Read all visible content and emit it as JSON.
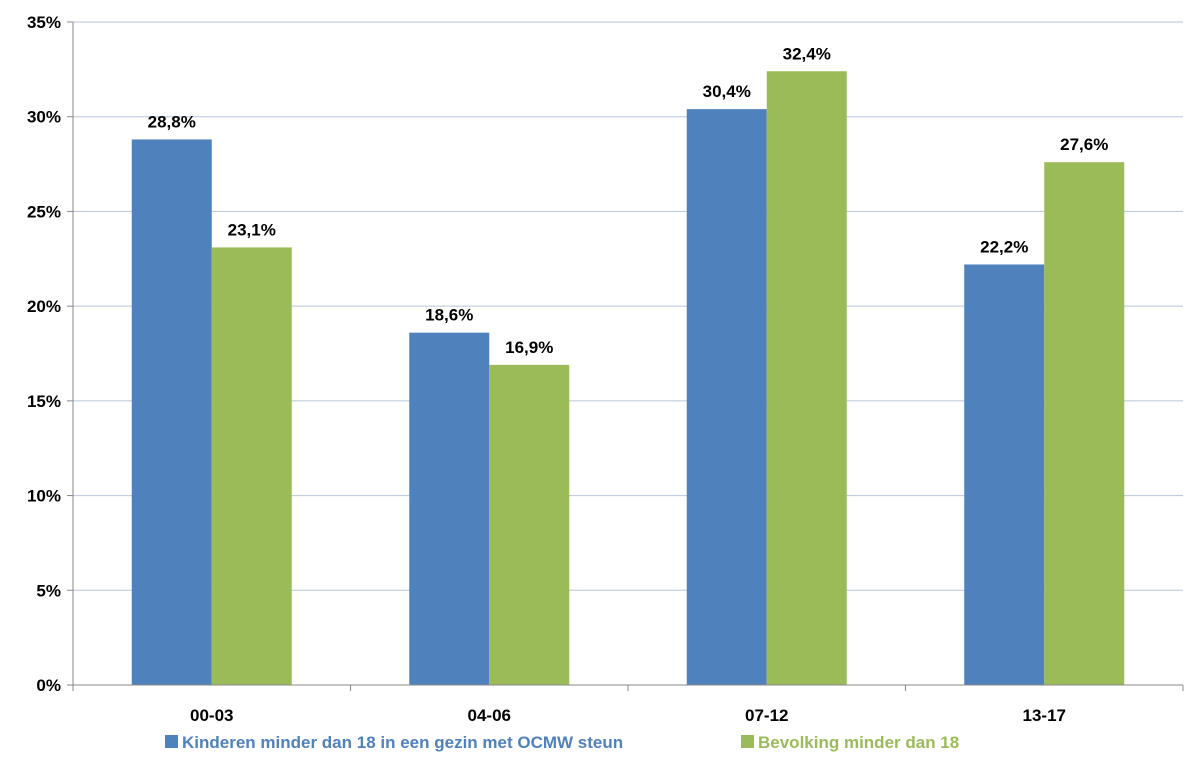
{
  "chart_data": {
    "type": "bar",
    "title": "",
    "xlabel": "",
    "ylabel": "",
    "categories": [
      "00-03",
      "04-06",
      "07-12",
      "13-17"
    ],
    "ylim": [
      0,
      35
    ],
    "y_ticks": [
      "0%",
      "5%",
      "10%",
      "15%",
      "20%",
      "25%",
      "30%",
      "35%"
    ],
    "y_tick_values": [
      0,
      5,
      10,
      15,
      20,
      25,
      30,
      35
    ],
    "grid": true,
    "legend_position": "bottom",
    "series": [
      {
        "name": "Kinderen minder dan 18 in een gezin met OCMW steun",
        "color": "#4F81BD",
        "values": [
          28.8,
          18.6,
          30.4,
          22.2
        ],
        "labels": [
          "28,8%",
          "18,6%",
          "30,4%",
          "22,2%"
        ]
      },
      {
        "name": "Bevolking minder dan 18",
        "color": "#9BBB59",
        "values": [
          23.1,
          16.9,
          32.4,
          27.6
        ],
        "labels": [
          "23,1%",
          "16,9%",
          "32,4%",
          "27,6%"
        ]
      }
    ]
  }
}
